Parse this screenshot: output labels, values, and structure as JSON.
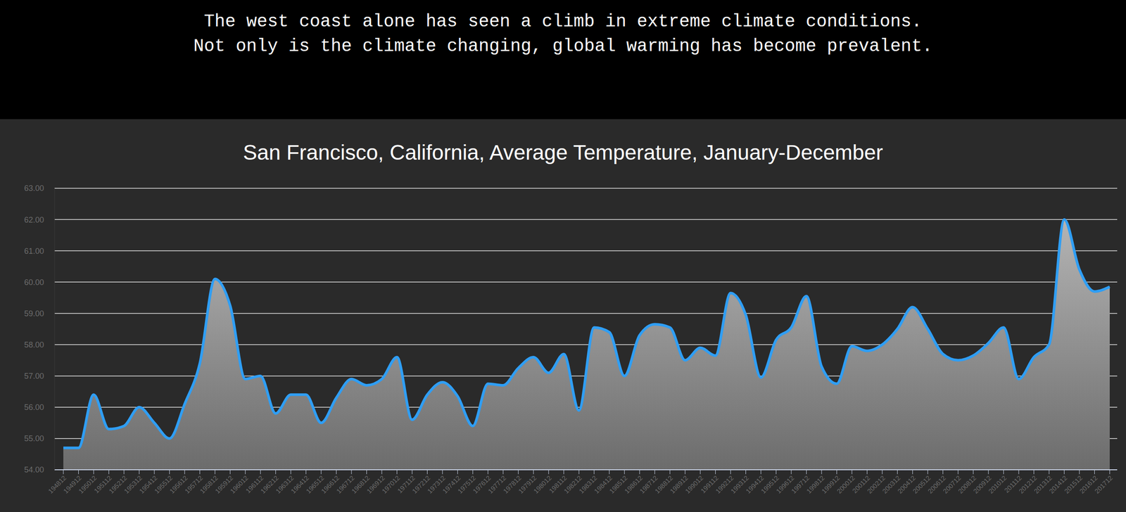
{
  "header": {
    "lines": [
      "The west coast alone has seen a climb in extreme climate conditions.",
      "Not only is the climate changing, global warming has become prevalent."
    ]
  },
  "chart_data": {
    "type": "area",
    "title": "San Francisco, California, Average Temperature, January-December",
    "categories": [
      "194812",
      "194912",
      "195012",
      "195112",
      "195212",
      "195312",
      "195412",
      "195512",
      "195612",
      "195712",
      "195812",
      "195912",
      "196012",
      "196112",
      "196212",
      "196312",
      "196412",
      "196512",
      "196612",
      "196712",
      "196812",
      "196912",
      "197012",
      "197112",
      "197212",
      "197312",
      "197412",
      "197512",
      "197612",
      "197712",
      "197812",
      "197912",
      "198012",
      "198112",
      "198212",
      "198312",
      "198412",
      "198512",
      "198612",
      "198712",
      "198812",
      "198912",
      "199012",
      "199112",
      "199212",
      "199312",
      "199412",
      "199512",
      "199612",
      "199712",
      "199812",
      "199912",
      "200012",
      "200112",
      "200212",
      "200312",
      "200412",
      "200512",
      "200612",
      "200712",
      "200812",
      "200912",
      "201012",
      "201112",
      "201212",
      "201312",
      "201412",
      "201512",
      "201612",
      "201712"
    ],
    "values": [
      54.7,
      54.7,
      56.4,
      55.3,
      55.4,
      56.0,
      55.5,
      55.0,
      56.1,
      57.4,
      60.1,
      59.25,
      56.9,
      57.0,
      55.8,
      56.4,
      56.4,
      55.5,
      56.3,
      56.9,
      56.7,
      56.9,
      57.6,
      55.6,
      56.4,
      56.8,
      56.35,
      55.4,
      56.75,
      56.7,
      57.25,
      57.6,
      57.1,
      57.7,
      55.9,
      58.55,
      58.4,
      57.0,
      58.3,
      58.65,
      58.55,
      57.5,
      57.9,
      57.65,
      59.65,
      58.95,
      56.95,
      58.15,
      58.55,
      59.55,
      57.3,
      56.75,
      57.95,
      57.8,
      58.0,
      58.5,
      59.2,
      58.5,
      57.7,
      57.5,
      57.65,
      58.05,
      58.55,
      56.9,
      57.6,
      58.0,
      62.0,
      60.4,
      59.7,
      59.85
    ],
    "color": "#2f9ef4",
    "ylim": [
      54,
      63
    ],
    "yticks": [
      {
        "value": 54,
        "label": "54.00"
      },
      {
        "value": 55,
        "label": "55.00"
      },
      {
        "value": 56,
        "label": "56.00"
      },
      {
        "value": 57,
        "label": "57.00"
      },
      {
        "value": 58,
        "label": "58.00"
      },
      {
        "value": 59,
        "label": "59.00"
      },
      {
        "value": 60,
        "label": "60.00"
      },
      {
        "value": 61,
        "label": "61.00"
      },
      {
        "value": 62,
        "label": "62.00"
      },
      {
        "value": 63,
        "label": "63.00"
      }
    ],
    "grid": true
  }
}
